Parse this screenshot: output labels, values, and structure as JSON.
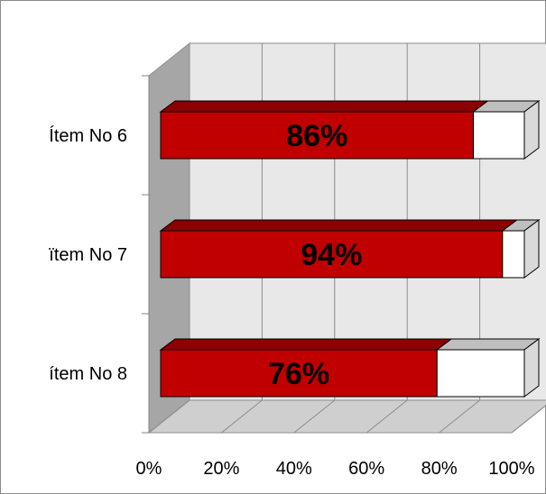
{
  "chart_data": {
    "type": "bar",
    "orientation": "horizontal",
    "stacked_100": true,
    "three_d": true,
    "categories": [
      "Ítem No 6",
      "ïtem No 7",
      "ítem No 8"
    ],
    "series": [
      {
        "values": [
          86,
          94,
          76
        ],
        "color": "#c00000"
      },
      {
        "values": [
          14,
          6,
          24
        ],
        "color": "#ffffff"
      }
    ],
    "data_labels": [
      "86%",
      "94%",
      "76%"
    ],
    "x_ticks": [
      "0%",
      "20%",
      "40%",
      "60%",
      "80%",
      "100%"
    ],
    "xlim": [
      0,
      100
    ],
    "grid": true,
    "colors": {
      "wall": "#e8e8e8",
      "side_wall": "#a6a6a6",
      "floor": "#cfcfcf",
      "grid": "#8c8c8c",
      "bar_top": "#8b0000"
    }
  }
}
